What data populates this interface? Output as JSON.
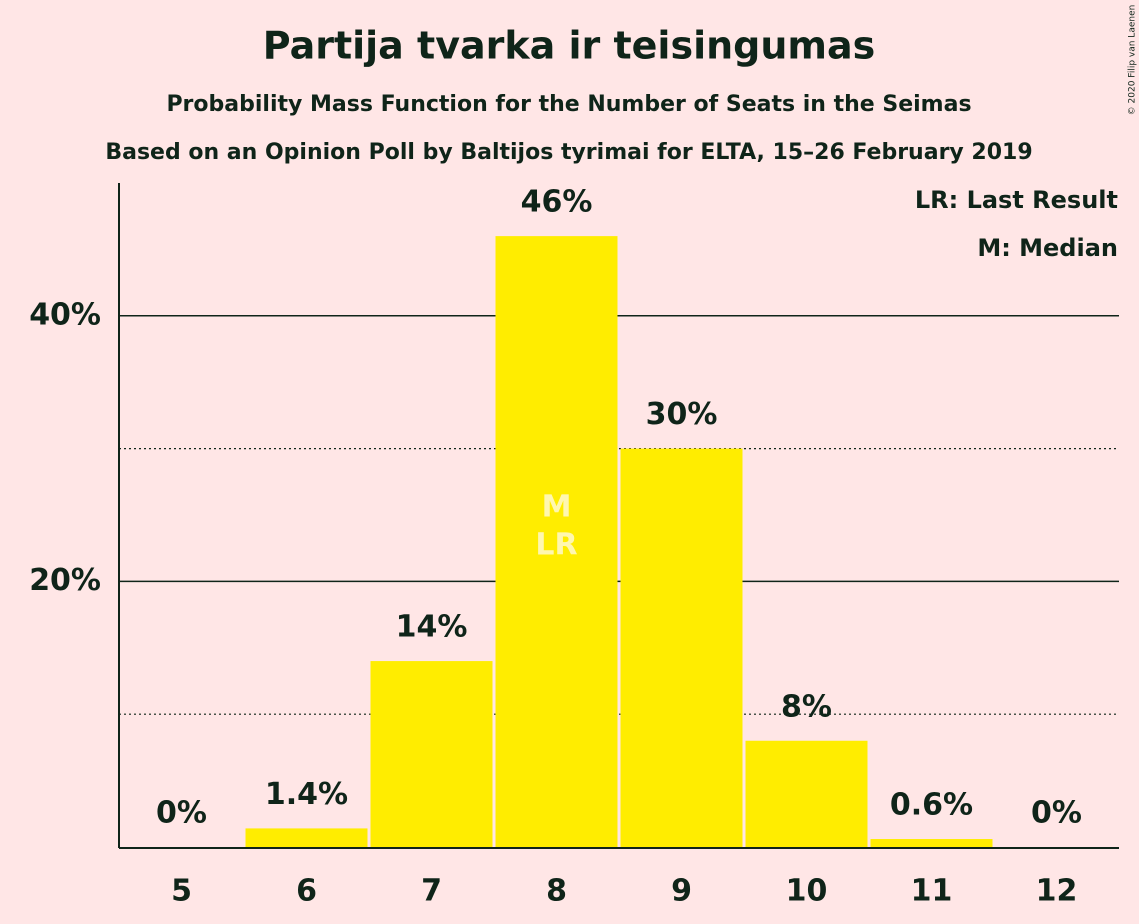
{
  "chart_data": {
    "type": "bar",
    "title": "Partija tvarka ir teisingumas",
    "subtitle": "Probability Mass Function for the Number of Seats in the Seimas",
    "subtitle2": "Based on an Opinion Poll by Baltijos tyrimai for ELTA, 15–26 February 2019",
    "categories": [
      "5",
      "6",
      "7",
      "8",
      "9",
      "10",
      "11",
      "12"
    ],
    "values": [
      0,
      1.4,
      14,
      46,
      30,
      8,
      0.6,
      0
    ],
    "value_labels": [
      "0%",
      "1.4%",
      "14%",
      "46%",
      "30%",
      "8%",
      "0.6%",
      "0%"
    ],
    "color": "#ffed00",
    "ylim": [
      0,
      50
    ],
    "yticks": [
      {
        "value": 20,
        "label": "20%"
      },
      {
        "value": 40,
        "label": "40%"
      }
    ],
    "minor_gridlines": [
      10,
      30
    ],
    "grid": true,
    "bar_annotations": [
      {
        "category": "8",
        "lines": [
          "M",
          "LR"
        ]
      }
    ],
    "legend_notes": [
      "LR: Last Result",
      "M: Median"
    ],
    "credit": "© 2020 Filip van Laenen"
  }
}
